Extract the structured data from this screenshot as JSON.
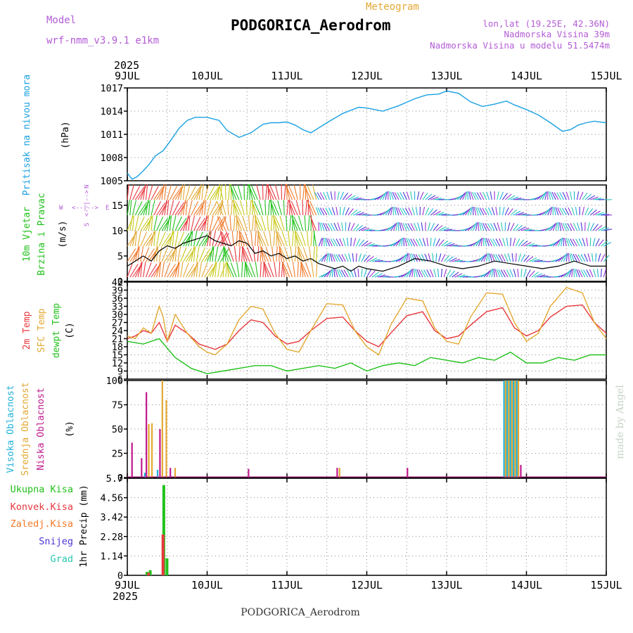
{
  "header": {
    "model_label": "Model",
    "model_name": "wrf-nmm_v3.9.1 e1km",
    "title": "PODGORICA_Aerodrom",
    "meteogram_label": "Meteogram",
    "coords": "lon,lat (19.25E, 42.36N)",
    "elevation": "Nadmorska Visina 39m",
    "model_elevation": "Nadmorska Visina u modelu 51.5474m",
    "watermark": "made by Angel",
    "footer": "PODGORICA_Aerodrom"
  },
  "time_axis": {
    "year": "2025",
    "labels": [
      "9JUL",
      "10JUL",
      "11JUL",
      "12JUL",
      "13JUL",
      "14JUL",
      "15JUL"
    ],
    "range_days": [
      0,
      6
    ]
  },
  "colors": {
    "pressure": "#1ba1e2",
    "temp2m": "#e8383d",
    "sfc_temp": "#e3a832",
    "dewpt": "#22c11c",
    "high_cloud": "#1fb2d8",
    "mid_cloud": "#e3a832",
    "low_cloud": "#c0198c",
    "total_precip": "#22c11c",
    "conv_precip": "#e8383d",
    "frozen_precip": "#ef7a2b",
    "snow": "#4b35d6",
    "hail": "#27c9b2",
    "wind_label": "#22c11c",
    "wind_dir_label": "#b35cd6"
  },
  "chart_data": [
    {
      "type": "line",
      "ylabel": "(hPa)",
      "side_label": "Pritisak na nivou mora",
      "ylim": [
        1005,
        1017
      ],
      "yticks": [
        "1005",
        "1008",
        "1011",
        "1014",
        "1017"
      ],
      "grid": true,
      "series": [
        {
          "name": "Pritisak na nivou mora",
          "x": [
            0,
            0.06,
            0.12,
            0.2,
            0.28,
            0.35,
            0.45,
            0.55,
            0.65,
            0.75,
            0.85,
            1.0,
            1.15,
            1.25,
            1.4,
            1.55,
            1.7,
            1.8,
            1.9,
            2.0,
            2.1,
            2.2,
            2.3,
            2.5,
            2.7,
            2.9,
            3.0,
            3.2,
            3.4,
            3.6,
            3.75,
            3.9,
            4.0,
            4.15,
            4.3,
            4.45,
            4.6,
            4.75,
            4.85,
            5.0,
            5.15,
            5.3,
            5.45,
            5.55,
            5.65,
            5.75,
            5.85,
            5.92,
            6.0
          ],
          "values": [
            1006.0,
            1005.2,
            1005.5,
            1006.3,
            1007.2,
            1008.2,
            1008.9,
            1010.3,
            1011.8,
            1012.8,
            1013.2,
            1013.2,
            1012.8,
            1011.5,
            1010.6,
            1011.2,
            1012.3,
            1012.5,
            1012.5,
            1012.6,
            1012.2,
            1011.6,
            1011.2,
            1012.5,
            1013.7,
            1014.5,
            1014.4,
            1014.0,
            1014.7,
            1015.6,
            1016.1,
            1016.2,
            1016.6,
            1016.3,
            1015.2,
            1014.6,
            1014.9,
            1015.3,
            1014.8,
            1014.2,
            1013.5,
            1012.5,
            1011.4,
            1011.6,
            1012.2,
            1012.5,
            1012.7,
            1012.6,
            1012.5
          ]
        }
      ]
    },
    {
      "type": "line",
      "ylabel": "(m/s)",
      "side_label": [
        "10m Vjetar",
        "Brzina i Pravac"
      ],
      "direction_label": [
        "W",
        "<--|-->",
        "E",
        "S",
        "<--|-->",
        "N"
      ],
      "ylim": [
        0,
        19
      ],
      "yticks": [
        "0",
        "5",
        "10",
        "15"
      ],
      "grid": true,
      "series": [
        {
          "name": "Brzina",
          "x": [
            0,
            0.1,
            0.2,
            0.3,
            0.4,
            0.5,
            0.6,
            0.7,
            0.8,
            0.9,
            1.0,
            1.1,
            1.2,
            1.3,
            1.4,
            1.5,
            1.6,
            1.7,
            1.8,
            1.9,
            2.0,
            2.1,
            2.2,
            2.3,
            2.4,
            2.5,
            2.6,
            2.7,
            2.8,
            2.9,
            3.0,
            3.2,
            3.4,
            3.6,
            3.8,
            4.0,
            4.2,
            4.4,
            4.6,
            4.8,
            5.0,
            5.2,
            5.4,
            5.6,
            5.8,
            6.0
          ],
          "values": [
            3.0,
            4.0,
            5.0,
            4.0,
            6.0,
            7.0,
            6.5,
            7.5,
            8.0,
            8.5,
            9.0,
            8.0,
            7.5,
            7.0,
            8.0,
            7.5,
            5.5,
            6.0,
            5.0,
            5.5,
            4.5,
            5.0,
            4.0,
            4.5,
            3.5,
            3.0,
            2.5,
            3.0,
            2.0,
            3.0,
            2.5,
            2.0,
            3.0,
            4.5,
            4.0,
            3.0,
            2.5,
            3.0,
            4.0,
            3.5,
            3.0,
            2.5,
            3.0,
            4.0,
            3.0,
            3.0
          ]
        }
      ]
    },
    {
      "type": "line",
      "ylabel": "(C)",
      "side_label": [
        "2m Temp",
        "SFC Temp",
        "dewpt Temp"
      ],
      "ylim": [
        6,
        42
      ],
      "yticks": [
        "6",
        "9",
        "12",
        "15",
        "18",
        "21",
        "24",
        "27",
        "30",
        "33",
        "36",
        "39",
        "42"
      ],
      "grid": true,
      "series": [
        {
          "name": "2m Temp",
          "x": [
            0,
            0.1,
            0.2,
            0.3,
            0.4,
            0.5,
            0.6,
            0.75,
            0.9,
            1.0,
            1.1,
            1.25,
            1.4,
            1.55,
            1.7,
            1.85,
            2.0,
            2.15,
            2.3,
            2.5,
            2.7,
            2.85,
            3.0,
            3.15,
            3.3,
            3.5,
            3.7,
            3.85,
            4.0,
            4.15,
            4.3,
            4.5,
            4.7,
            4.85,
            5.0,
            5.15,
            5.3,
            5.5,
            5.7,
            5.85,
            6.0
          ],
          "values": [
            21,
            22,
            24,
            23,
            27,
            20,
            26,
            23,
            19,
            18,
            17,
            19,
            24,
            28,
            27,
            22,
            19,
            20,
            24,
            28.5,
            29,
            24,
            20,
            18,
            23,
            29.5,
            31,
            24,
            21,
            22,
            26,
            31,
            32.5,
            25,
            22,
            24,
            29,
            33,
            33.5,
            27,
            23
          ]
        },
        {
          "name": "SFC Temp",
          "x": [
            0,
            0.1,
            0.2,
            0.3,
            0.4,
            0.45,
            0.5,
            0.6,
            0.75,
            0.9,
            1.0,
            1.1,
            1.25,
            1.4,
            1.55,
            1.7,
            1.85,
            2.0,
            2.15,
            2.3,
            2.5,
            2.7,
            2.85,
            3.0,
            3.15,
            3.3,
            3.5,
            3.7,
            3.85,
            4.0,
            4.15,
            4.3,
            4.5,
            4.7,
            4.85,
            5.0,
            5.15,
            5.3,
            5.5,
            5.7,
            5.85,
            6.0
          ],
          "values": [
            22,
            21,
            25,
            23,
            33,
            29,
            20,
            30,
            23,
            18,
            16,
            15,
            19,
            28,
            33,
            32,
            23,
            17,
            16,
            24,
            34,
            33.5,
            24,
            18,
            15,
            26,
            36,
            35,
            25,
            20,
            19,
            29,
            38,
            37.5,
            27,
            20,
            23,
            33,
            40,
            38,
            27,
            21
          ]
        },
        {
          "name": "dewpt Temp",
          "x": [
            0,
            0.2,
            0.4,
            0.6,
            0.8,
            1.0,
            1.2,
            1.4,
            1.6,
            1.8,
            2.0,
            2.2,
            2.4,
            2.6,
            2.8,
            3.0,
            3.2,
            3.4,
            3.6,
            3.8,
            4.0,
            4.2,
            4.4,
            4.6,
            4.8,
            5.0,
            5.2,
            5.4,
            5.6,
            5.8,
            6.0
          ],
          "values": [
            20,
            19,
            21,
            14,
            10,
            8,
            9,
            10,
            11,
            11,
            9,
            10,
            11,
            10,
            12,
            9,
            11,
            12,
            11,
            14,
            13,
            12,
            14,
            13,
            16,
            12,
            12,
            14,
            13,
            15,
            15
          ]
        }
      ]
    },
    {
      "type": "bar",
      "ylabel": "(%)",
      "side_label": [
        "Visoka Oblacnost",
        "Srednja Oblacnost",
        "Niska Oblacnost"
      ],
      "ylim": [
        0,
        100
      ],
      "yticks": [
        "0",
        "25",
        "50",
        "75",
        "100"
      ],
      "grid": true,
      "series": [
        {
          "name": "Visoka Oblacnost",
          "x": [
            0.22,
            0.38,
            4.72,
            4.76,
            4.8,
            4.84,
            4.88
          ],
          "values": [
            5,
            8,
            100,
            100,
            100,
            100,
            100
          ]
        },
        {
          "name": "Srednja Oblacnost",
          "x": [
            0.27,
            0.31,
            0.44,
            0.49,
            0.6,
            2.66,
            4.74,
            4.78,
            4.82,
            4.86,
            4.9
          ],
          "values": [
            55,
            56,
            100,
            80,
            10,
            10,
            100,
            100,
            100,
            100,
            100
          ]
        },
        {
          "name": "Niska Oblacnost",
          "x": [
            0.06,
            0.18,
            0.24,
            0.41,
            0.54,
            1.52,
            2.63,
            3.51,
            4.93
          ],
          "values": [
            36,
            20,
            88,
            50,
            10,
            9,
            10,
            10,
            13
          ]
        }
      ]
    },
    {
      "type": "bar",
      "ylabel": "1hr Precip (mm)",
      "side_label": [
        "Ukupna Kisa",
        "Konvek.Kisa",
        "Zaledj.Kisa",
        "Snijeg",
        "Grad"
      ],
      "ylim": [
        0,
        5.7
      ],
      "yticks": [
        "0",
        "1.14",
        "2.28",
        "3.42",
        "4.56",
        "5.7"
      ],
      "grid": true,
      "series": [
        {
          "name": "Ukupna Kisa",
          "x": [
            0.24,
            0.28,
            0.45,
            0.49
          ],
          "values": [
            0.2,
            0.3,
            5.3,
            1.0
          ]
        },
        {
          "name": "Konvek.Kisa",
          "x": [
            0.26,
            0.44
          ],
          "values": [
            0.15,
            2.4
          ]
        },
        {
          "name": "Zaledj.Kisa",
          "x": [],
          "values": []
        },
        {
          "name": "Snijeg",
          "x": [],
          "values": []
        },
        {
          "name": "Grad",
          "x": [],
          "values": []
        }
      ]
    }
  ]
}
